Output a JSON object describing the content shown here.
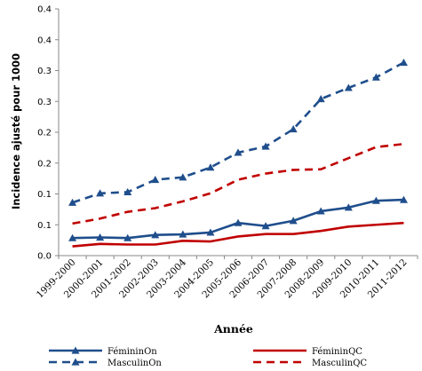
{
  "chart_data": {
    "type": "line",
    "xlabel": "Année",
    "ylabel": "Incidence ajusté pour 1000",
    "categories": [
      "1999-2000",
      "2000-2001",
      "2001-2002",
      "2002-2003",
      "2003-2004",
      "2004-2005",
      "2005-2006",
      "2006-2007",
      "2007-2008",
      "2008-2009",
      "2009-2010",
      "2010-2011",
      "2011-2012"
    ],
    "yticks": [
      "0.0",
      "0.1",
      "0.1",
      "0.2",
      "0.2",
      "0.3",
      "0.3",
      "0.4",
      "0.4"
    ],
    "ylim": [
      0,
      0.4
    ],
    "grid": false,
    "legend_position": "bottom",
    "series": [
      {
        "name": "FémininOn",
        "color": "#1f4e8c",
        "dash": false,
        "marker": "triangle",
        "values": [
          0.0285,
          0.0295,
          0.0285,
          0.0335,
          0.0345,
          0.0375,
          0.053,
          0.048,
          0.0565,
          0.072,
          0.078,
          0.089,
          0.0905
        ]
      },
      {
        "name": "MasculinOn",
        "color": "#1f4e8c",
        "dash": true,
        "marker": "triangle",
        "values": [
          0.086,
          0.101,
          0.103,
          0.123,
          0.127,
          0.143,
          0.167,
          0.177,
          0.205,
          0.254,
          0.272,
          0.289,
          0.313
        ]
      },
      {
        "name": "FémininQC",
        "color": "#c00000",
        "dash": false,
        "marker": "none",
        "values": [
          0.015,
          0.019,
          0.018,
          0.018,
          0.024,
          0.023,
          0.031,
          0.035,
          0.035,
          0.04,
          0.047,
          0.05,
          0.053
        ]
      },
      {
        "name": "MasculinQC",
        "color": "#c00000",
        "dash": true,
        "marker": "none",
        "values": [
          0.052,
          0.06,
          0.071,
          0.077,
          0.088,
          0.101,
          0.123,
          0.133,
          0.139,
          0.14,
          0.158,
          0.176,
          0.181
        ]
      }
    ]
  }
}
